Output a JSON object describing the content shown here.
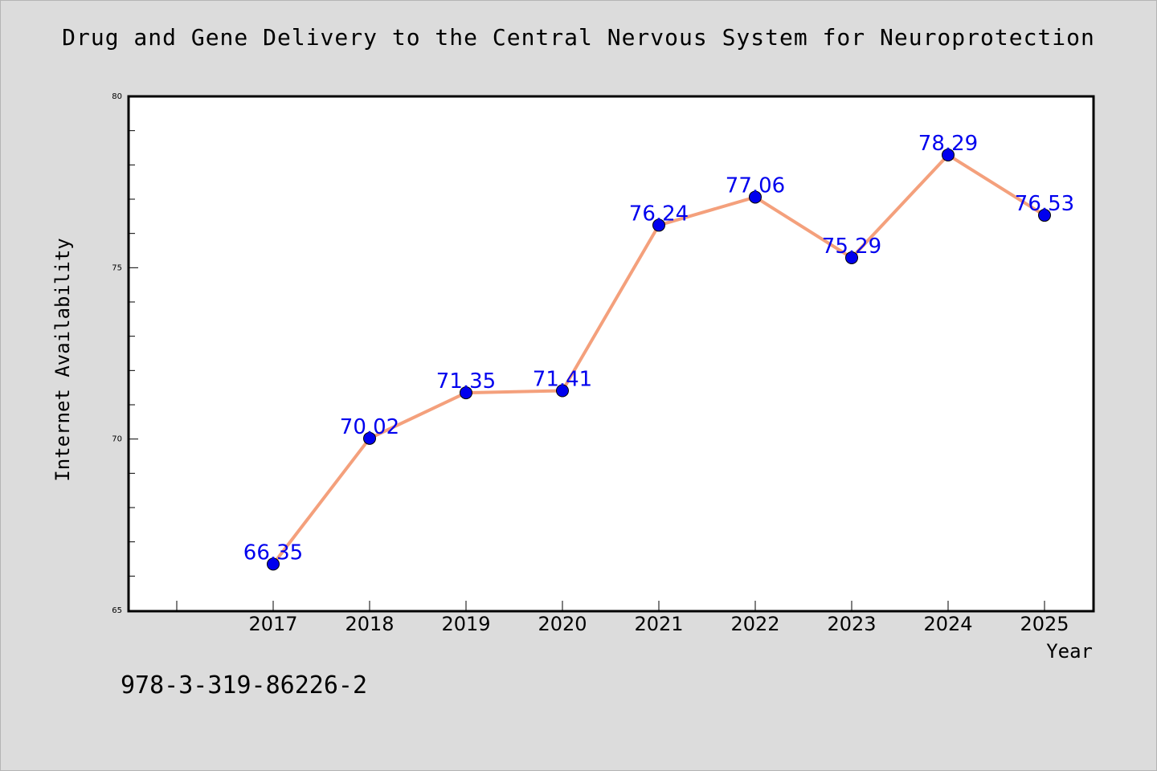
{
  "chart_data": {
    "type": "line",
    "title": "Drug and Gene Delivery to the Central Nervous System for Neuroprotection",
    "xlabel": "Year",
    "ylabel": "Internet Availability",
    "categories": [
      "2017",
      "2018",
      "2019",
      "2020",
      "2021",
      "2022",
      "2023",
      "2024",
      "2025"
    ],
    "series": [
      {
        "values": [
          66.35,
          70.02,
          71.35,
          71.41,
          76.24,
          77.06,
          75.29,
          78.29,
          76.53
        ],
        "data_labels": [
          "66.35",
          "70.02",
          "71.35",
          "71.41",
          "76.24",
          "77.06",
          "75.29",
          "78.29",
          "76.53"
        ]
      }
    ],
    "ylim": [
      65,
      80
    ],
    "y_ticks": [
      "65",
      "70",
      "75",
      "80"
    ],
    "grid": false,
    "line_color": "#f4a07c",
    "marker_color": "#0000ee",
    "label_color": "#0000ee",
    "background": "#dcdcdc",
    "plot_background": "#ffffff"
  },
  "footer": {
    "isbn": "978-3-319-86226-2"
  }
}
